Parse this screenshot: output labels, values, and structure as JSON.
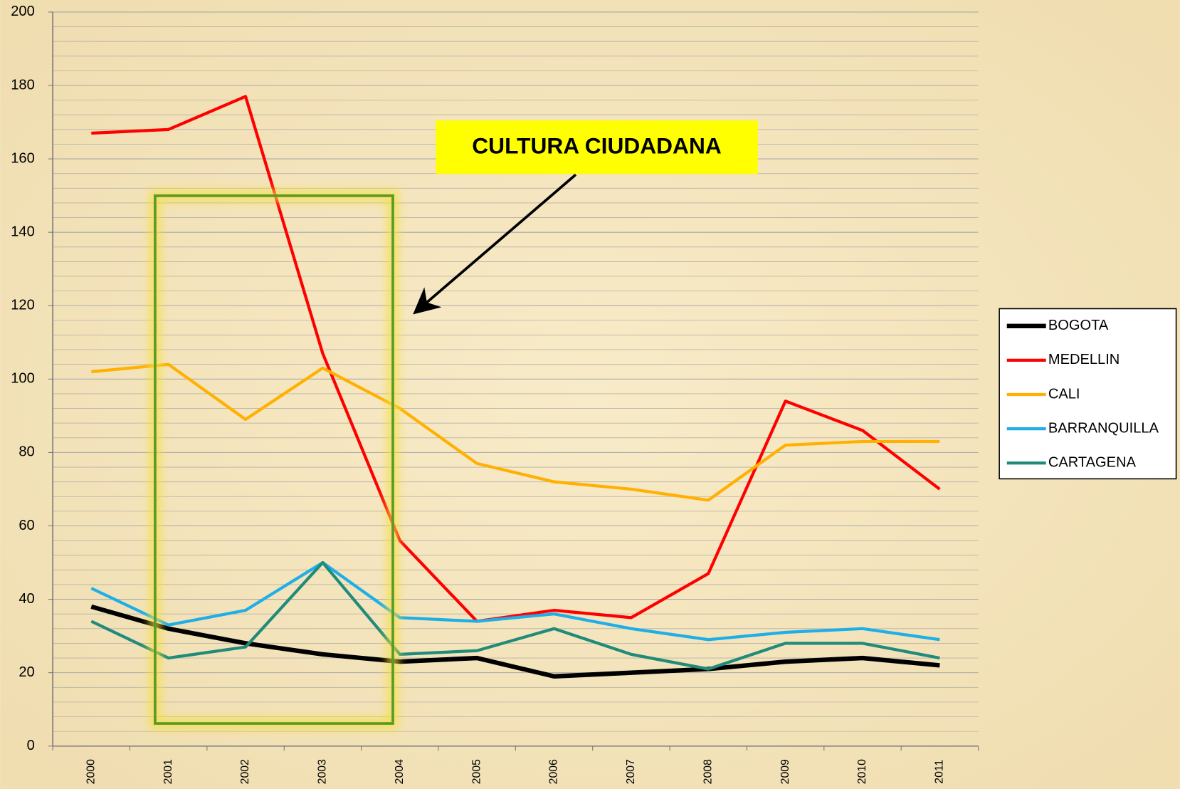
{
  "chart_data": {
    "type": "line",
    "categories": [
      "2000",
      "2001",
      "2002",
      "2003",
      "2004",
      "2005",
      "2006",
      "2007",
      "2008",
      "2009",
      "2010",
      "2011"
    ],
    "series": [
      {
        "name": "BOGOTA",
        "color": "#000000",
        "values": [
          38,
          32,
          28,
          25,
          23,
          24,
          19,
          20,
          21,
          23,
          24,
          22
        ]
      },
      {
        "name": "MEDELLIN",
        "color": "#ff0000",
        "values": [
          167,
          168,
          177,
          107,
          56,
          34,
          37,
          35,
          47,
          94,
          86,
          70
        ]
      },
      {
        "name": "CALI",
        "color": "#ffb000",
        "values": [
          102,
          104,
          89,
          103,
          92,
          77,
          72,
          70,
          67,
          82,
          83,
          83
        ]
      },
      {
        "name": "BARRANQUILLA",
        "color": "#1eaee8",
        "values": [
          43,
          33,
          37,
          50,
          35,
          34,
          36,
          32,
          29,
          31,
          32,
          29
        ]
      },
      {
        "name": "CARTAGENA",
        "color": "#218b7a",
        "values": [
          34,
          24,
          27,
          50,
          25,
          26,
          32,
          25,
          21,
          28,
          28,
          24
        ]
      }
    ],
    "ylim": [
      0,
      200
    ],
    "yticks": [
      0,
      20,
      40,
      60,
      80,
      100,
      120,
      140,
      160,
      180,
      200
    ],
    "grid": true,
    "legend": "right",
    "annotations": [
      "CULTURA CIUDADANA"
    ]
  }
}
